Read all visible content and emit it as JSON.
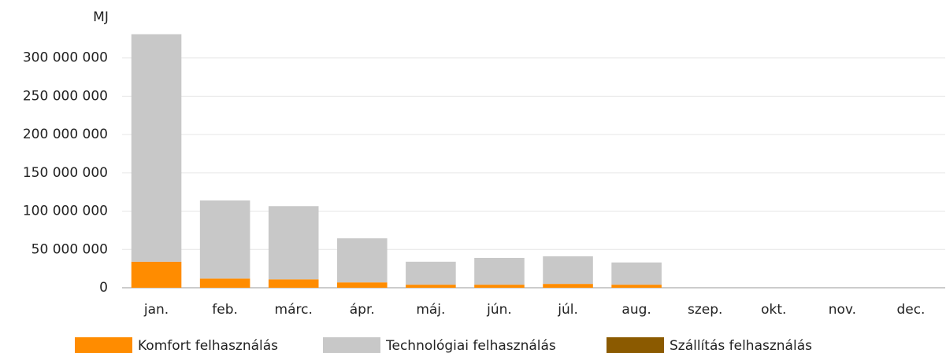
{
  "chart_data": {
    "type": "bar",
    "stacked": true,
    "y_unit": "MJ",
    "categories": [
      "jan.",
      "feb.",
      "márc.",
      "ápr.",
      "máj.",
      "jún.",
      "júl.",
      "aug.",
      "szep.",
      "okt.",
      "nov.",
      "dec."
    ],
    "series": [
      {
        "name": "Komfort felhasználás",
        "color": "#ff8c00",
        "values": [
          34000000,
          12000000,
          11000000,
          7000000,
          4000000,
          4000000,
          5000000,
          4000000,
          null,
          null,
          null,
          null
        ]
      },
      {
        "name": "Technológiai felhasználás",
        "color": "#c8c8c8",
        "values": [
          297000000,
          102000000,
          95500000,
          57500000,
          30000000,
          35000000,
          36000000,
          29000000,
          null,
          null,
          null,
          null
        ]
      },
      {
        "name": "Szállítás felhasználás",
        "color": "#8b5a00",
        "values": [
          0,
          0,
          0,
          0,
          0,
          0,
          0,
          0,
          null,
          null,
          null,
          null
        ]
      }
    ],
    "ylim": [
      0,
      350000000
    ],
    "yticks": [
      0,
      {
        "value": 50000000,
        "label": "50 000 000"
      },
      {
        "value": 100000000,
        "label": "100 000 000"
      },
      {
        "value": 150000000,
        "label": "150 000 000"
      },
      {
        "value": 200000000,
        "label": "200 000 000"
      },
      {
        "value": 250000000,
        "label": "250 000 000"
      },
      {
        "value": 300000000,
        "label": "300 000 000"
      }
    ],
    "grid": true,
    "legend": "bottom"
  }
}
